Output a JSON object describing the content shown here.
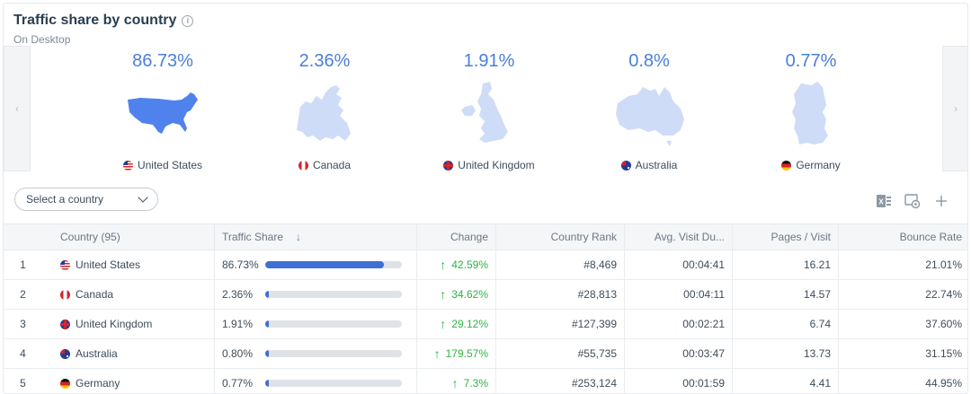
{
  "header": {
    "title": "Traffic share by country",
    "subtitle": "On Desktop"
  },
  "carousel": [
    {
      "share": "86.73%",
      "country": "United States",
      "flag": "us"
    },
    {
      "share": "2.36%",
      "country": "Canada",
      "flag": "ca"
    },
    {
      "share": "1.91%",
      "country": "United Kingdom",
      "flag": "uk"
    },
    {
      "share": "0.8%",
      "country": "Australia",
      "flag": "au"
    },
    {
      "share": "0.77%",
      "country": "Germany",
      "flag": "de"
    }
  ],
  "select": {
    "placeholder": "Select a country"
  },
  "table": {
    "headers": {
      "country": "Country (95)",
      "share": "Traffic Share",
      "change": "Change",
      "rank": "Country Rank",
      "avg": "Avg. Visit Du...",
      "pages": "Pages / Visit",
      "bounce": "Bounce Rate"
    },
    "rows": [
      {
        "idx": "1",
        "country": "United States",
        "flag": "us",
        "share": "86.73%",
        "fill": 0.8673,
        "change": "42.59%",
        "rank": "#8,469",
        "avg": "00:04:41",
        "pages": "16.21",
        "bounce": "21.01%"
      },
      {
        "idx": "2",
        "country": "Canada",
        "flag": "ca",
        "share": "2.36%",
        "fill": 0.0236,
        "change": "34.62%",
        "rank": "#28,813",
        "avg": "00:04:11",
        "pages": "14.57",
        "bounce": "22.74%"
      },
      {
        "idx": "3",
        "country": "United Kingdom",
        "flag": "uk",
        "share": "1.91%",
        "fill": 0.0191,
        "change": "29.12%",
        "rank": "#127,399",
        "avg": "00:02:21",
        "pages": "6.74",
        "bounce": "37.60%"
      },
      {
        "idx": "4",
        "country": "Australia",
        "flag": "au",
        "share": "0.80%",
        "fill": 0.008,
        "change": "179.57%",
        "rank": "#55,735",
        "avg": "00:03:47",
        "pages": "13.73",
        "bounce": "31.15%"
      },
      {
        "idx": "5",
        "country": "Germany",
        "flag": "de",
        "share": "0.77%",
        "fill": 0.0077,
        "change": "7.3%",
        "rank": "#253,124",
        "avg": "00:01:59",
        "pages": "4.41",
        "bounce": "44.95%"
      }
    ]
  },
  "colors": {
    "accent": "#4a7fd8",
    "bar": "#3f6fd3",
    "positive": "#2fb344",
    "map_primary": "#4f82ec",
    "map_secondary": "#cfdcf8"
  }
}
